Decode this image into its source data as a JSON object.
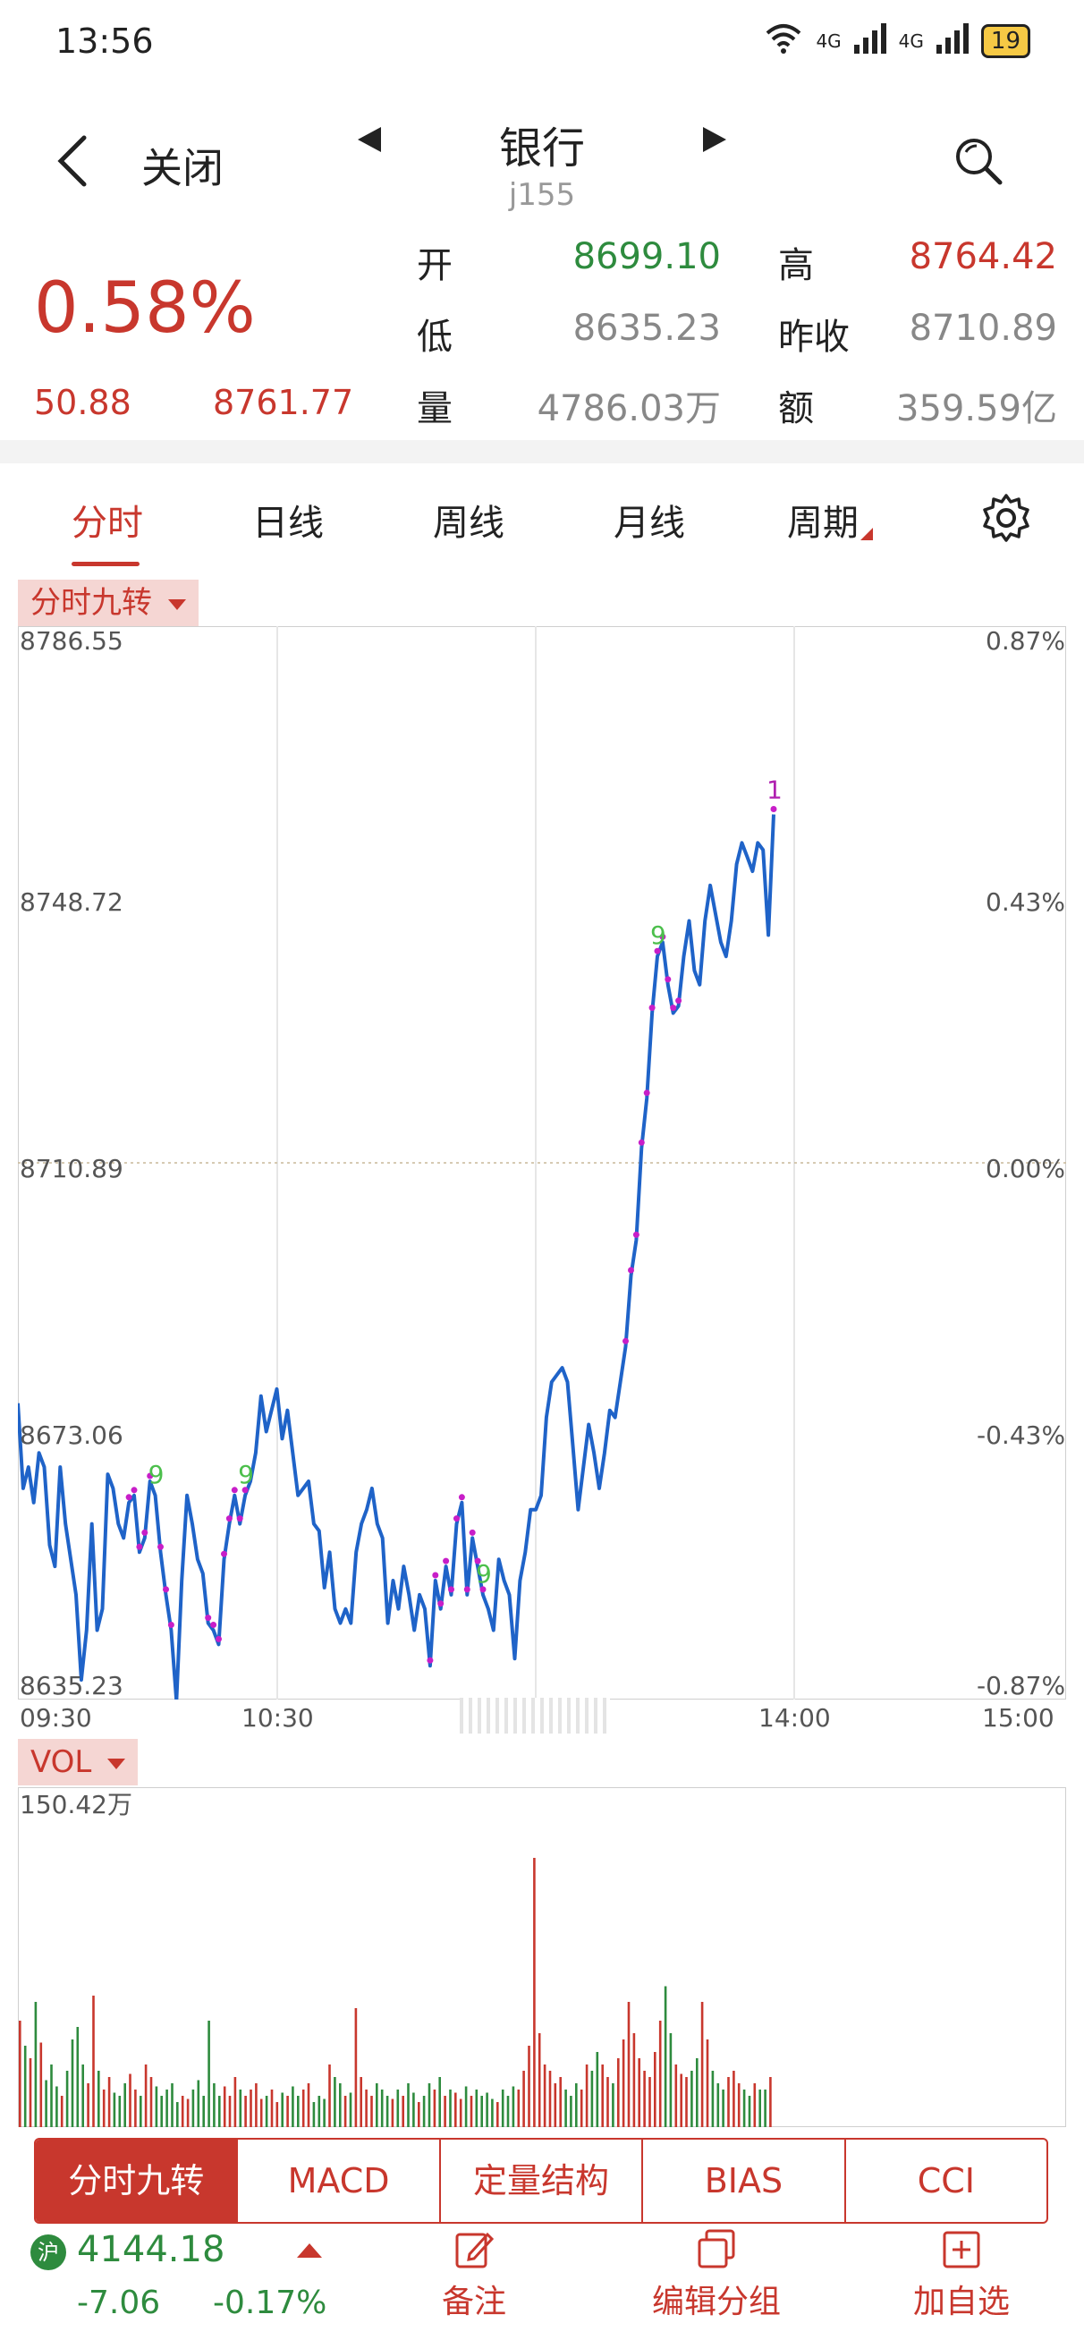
{
  "status_bar": {
    "time": "13:56",
    "network_labels": [
      "4G",
      "4G"
    ],
    "battery": "19"
  },
  "header": {
    "back_label": "关闭",
    "title": "银行",
    "code": "j155"
  },
  "quote": {
    "change_pct": "0.58%",
    "change": "50.88",
    "price": "8761.77",
    "fields": [
      {
        "label": "开",
        "value": "8699.10",
        "color": "#2e8b3e"
      },
      {
        "label": "高",
        "value": "8764.42",
        "color": "#c8372d"
      },
      {
        "label": "低",
        "value": "8635.23",
        "color": "#888888"
      },
      {
        "label": "昨收",
        "value": "8710.89",
        "color": "#888888"
      },
      {
        "label": "量",
        "value": "4786.03万",
        "color": "#888888"
      },
      {
        "label": "额",
        "value": "359.59亿",
        "color": "#888888"
      }
    ]
  },
  "tabs": [
    "分时",
    "日线",
    "周线",
    "月线",
    "周期"
  ],
  "active_tab": "分时",
  "indicator_pill": "分时九转",
  "vol_pill": "VOL",
  "chart_data": {
    "type": "line",
    "title": "",
    "series": [
      {
        "values": [
          8677,
          8665,
          8668,
          8663,
          8670,
          8668,
          8657,
          8654,
          8668,
          8660,
          8655,
          8650,
          8638,
          8645,
          8660,
          8645,
          8648,
          8667,
          8665,
          8660,
          8658,
          8663,
          8664,
          8656,
          8658,
          8666,
          8664,
          8656,
          8650,
          8645,
          8635,
          8652,
          8664,
          8660,
          8655,
          8653,
          8646,
          8645,
          8643,
          8655,
          8660,
          8664,
          8660,
          8664,
          8666,
          8670,
          8678,
          8673,
          8676,
          8679,
          8672,
          8676,
          8670,
          8664,
          8665,
          8666,
          8660,
          8659,
          8651,
          8656,
          8648,
          8646,
          8648,
          8646,
          8656,
          8660,
          8662,
          8665,
          8660,
          8658,
          8646,
          8652,
          8648,
          8654,
          8650,
          8645,
          8650,
          8648,
          8640,
          8652,
          8648,
          8654,
          8650,
          8660,
          8663,
          8650,
          8658,
          8654,
          8650,
          8648,
          8645,
          8655,
          8652,
          8650,
          8641,
          8652,
          8656,
          8662,
          8662,
          8664,
          8675,
          8680,
          8681,
          8682,
          8680,
          8671,
          8662,
          8668,
          8674,
          8670,
          8665,
          8670,
          8676,
          8675,
          8680,
          8685,
          8695,
          8700,
          8713,
          8720,
          8732,
          8740,
          8742,
          8736,
          8732,
          8733,
          8740,
          8745,
          8738,
          8736,
          8745,
          8750,
          8746,
          8742,
          8740,
          8745,
          8753,
          8756,
          8754,
          8752,
          8756,
          8755,
          8743,
          8760
        ],
        "x_labels": [
          "09:30",
          "10:30",
          "14:00",
          "15:00"
        ]
      }
    ],
    "ylim": [
      8635.23,
      8786.55
    ],
    "left_ticks": [
      "8786.55",
      "8748.72",
      "8710.89",
      "8673.06",
      "8635.23"
    ],
    "right_ticks": [
      "0.87%",
      "0.43%",
      "0.00%",
      "-0.43%",
      "-0.87%"
    ],
    "signal_labels": [
      {
        "text": "9",
        "color": "#4cbf4c"
      },
      {
        "text": "9",
        "color": "#4cbf4c"
      },
      {
        "text": "9",
        "color": "#4cbf4c"
      },
      {
        "text": "9",
        "color": "#4cbf4c"
      },
      {
        "text": "1",
        "color": "#b020b0"
      }
    ],
    "volume": {
      "max_label": "150.42万",
      "values": [
        0.34,
        0.26,
        0.22,
        0.4,
        0.27,
        0.15,
        0.2,
        0.13,
        0.1,
        0.18,
        0.28,
        0.32,
        0.2,
        0.14,
        0.42,
        0.18,
        0.12,
        0.16,
        0.11,
        0.1,
        0.14,
        0.17,
        0.12,
        0.1,
        0.2,
        0.16,
        0.13,
        0.1,
        0.12,
        0.14,
        0.08,
        0.1,
        0.09,
        0.12,
        0.15,
        0.1,
        0.34,
        0.14,
        0.1,
        0.13,
        0.1,
        0.16,
        0.12,
        0.1,
        0.12,
        0.14,
        0.09,
        0.1,
        0.12,
        0.08,
        0.11,
        0.1,
        0.13,
        0.1,
        0.12,
        0.14,
        0.08,
        0.1,
        0.09,
        0.2,
        0.16,
        0.14,
        0.1,
        0.11,
        0.38,
        0.16,
        0.12,
        0.1,
        0.14,
        0.12,
        0.1,
        0.09,
        0.12,
        0.1,
        0.14,
        0.11,
        0.08,
        0.1,
        0.14,
        0.12,
        0.16,
        0.1,
        0.12,
        0.11,
        0.09,
        0.13,
        0.1,
        0.12,
        0.1,
        0.11,
        0.09,
        0.08,
        0.12,
        0.1,
        0.13,
        0.12,
        0.18,
        0.26,
        0.86,
        0.3,
        0.2,
        0.18,
        0.14,
        0.16,
        0.12,
        0.1,
        0.14,
        0.12,
        0.2,
        0.18,
        0.24,
        0.2,
        0.16,
        0.14,
        0.22,
        0.28,
        0.4,
        0.3,
        0.22,
        0.18,
        0.16,
        0.24,
        0.34,
        0.45,
        0.3,
        0.2,
        0.17,
        0.16,
        0.18,
        0.22,
        0.4,
        0.28,
        0.18,
        0.14,
        0.12,
        0.16,
        0.18,
        0.14,
        0.12,
        0.1,
        0.14,
        0.12,
        0.12,
        0.16
      ],
      "colors": "mixed"
    }
  },
  "indicators": [
    "分时九转",
    "MACD",
    "定量结构",
    "BIAS",
    "CCI"
  ],
  "bottom_bar": {
    "exchange_badge": "沪",
    "index_value": "4144.18",
    "index_change": "-7.06",
    "index_pct": "-0.17%",
    "actions": [
      {
        "label": "备注",
        "icon": "note-edit-icon"
      },
      {
        "label": "编辑分组",
        "icon": "group-copy-icon"
      },
      {
        "label": "加自选",
        "icon": "add-watchlist-icon"
      }
    ]
  },
  "colors": {
    "up": "#c8372d",
    "down": "#2e8b3e",
    "line": "#1f63c8",
    "signal_dot": "#c81ec8"
  }
}
